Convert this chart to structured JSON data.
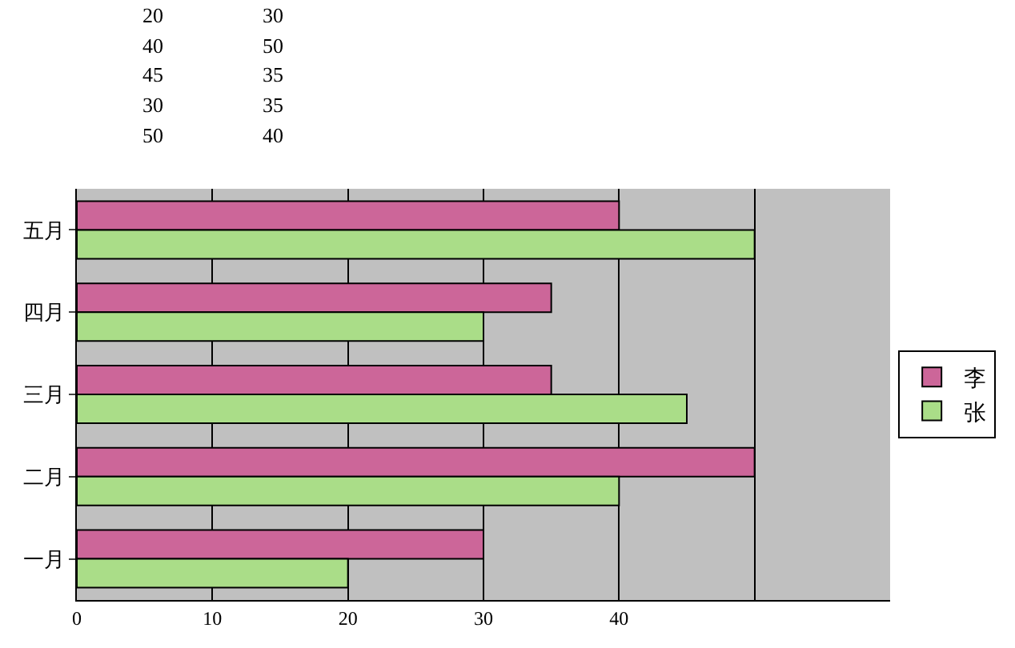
{
  "chart_data": {
    "type": "bar",
    "orientation": "horizontal",
    "categories": [
      "五月",
      "四月",
      "三月",
      "二月",
      "一月"
    ],
    "series": [
      {
        "name": "李",
        "color": "#cc6699",
        "values": [
          40,
          35,
          35,
          50,
          30
        ]
      },
      {
        "name": "张",
        "color": "#aadd88",
        "values": [
          50,
          30,
          45,
          40,
          20
        ]
      }
    ],
    "xlim": [
      0,
      60
    ],
    "xticks": [
      0,
      10,
      20,
      30,
      40,
      {
        "value": 50,
        "label": null
      },
      {
        "value": 60,
        "label": null
      }
    ],
    "grid": "x",
    "legend": "right",
    "annotations": [
      "20",
      "30",
      "40",
      "50",
      "45",
      "35",
      "30",
      "35",
      "50",
      "40"
    ]
  }
}
